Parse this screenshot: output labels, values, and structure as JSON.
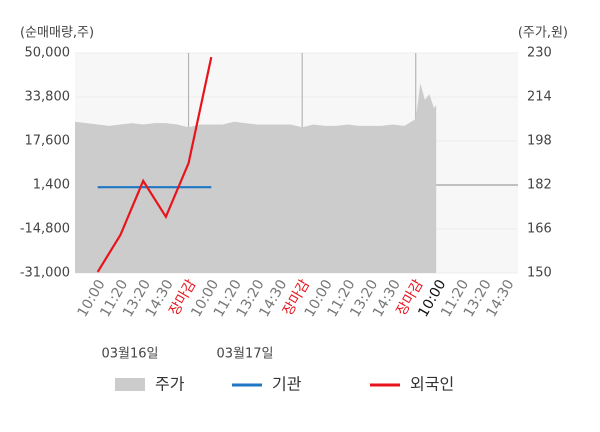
{
  "chart_data": {
    "type": "line",
    "y_axis_label": "(순매매량,주)",
    "y2_axis_label": "(주가,원)",
    "xlim": [
      0,
      19.5
    ],
    "xticks": [
      {
        "value": 1,
        "label": "10:00"
      },
      {
        "value": 2,
        "label": "11:20"
      },
      {
        "value": 3,
        "label": "13:20"
      },
      {
        "value": 4,
        "label": "14:30"
      },
      {
        "value": 5,
        "label": "장마감"
      },
      {
        "value": 6,
        "label": "10:00"
      },
      {
        "value": 7,
        "label": "11:20"
      },
      {
        "value": 8,
        "label": "13:20"
      },
      {
        "value": 9,
        "label": "14:30"
      },
      {
        "value": 10,
        "label": "장마감"
      },
      {
        "value": 11,
        "label": "10:00"
      },
      {
        "value": 12,
        "label": "11:20"
      },
      {
        "value": 13,
        "label": "13:20"
      },
      {
        "value": 14,
        "label": "14:30"
      },
      {
        "value": 15,
        "label": "장마감"
      },
      {
        "value": 16,
        "label": "10:00"
      },
      {
        "value": 17,
        "label": "11:20"
      },
      {
        "value": 18,
        "label": "13:20"
      },
      {
        "value": 19,
        "label": "14:30"
      }
    ],
    "dates": [
      "03월16일",
      "03월17일"
    ],
    "ylim": [
      -31000,
      50000
    ],
    "yticks": [
      {
        "value": 50000,
        "label": "50,000"
      },
      {
        "value": 33800,
        "label": "33,800"
      },
      {
        "value": 17600,
        "label": "17,600"
      },
      {
        "value": 1400,
        "label": "1,400"
      },
      {
        "value": -14800,
        "label": "-14,800"
      },
      {
        "value": -31000,
        "label": "-31,000"
      }
    ],
    "y2lim": [
      150,
      230
    ],
    "y2ticks": [
      150,
      166,
      182,
      198,
      214,
      230
    ],
    "series": [
      {
        "name": "주가",
        "color": "#cccccc",
        "axis": "y2",
        "kind": "area",
        "x": [
          0,
          0.5,
          1,
          1.5,
          2,
          2.5,
          3,
          3.5,
          4,
          4.5,
          5,
          5.5,
          6,
          6.5,
          7,
          7.5,
          8,
          8.5,
          9,
          9.5,
          10,
          10.5,
          11,
          11.5,
          12,
          12.5,
          13,
          13.5,
          14,
          14.5,
          15,
          15.2,
          15.4,
          15.6,
          15.8,
          15.9
        ],
        "values": [
          205,
          204.5,
          204,
          203.5,
          204,
          204.5,
          204,
          204.5,
          204.5,
          204,
          203,
          204,
          204,
          204,
          205,
          204.5,
          204,
          204,
          204,
          204,
          203,
          204,
          203.5,
          203.5,
          204,
          203.5,
          203.5,
          203.5,
          204,
          203.5,
          206,
          219,
          213,
          215,
          210,
          211
        ]
      },
      {
        "name": "기관",
        "color": "#1f77c4",
        "kind": "line",
        "x": [
          1,
          2,
          3,
          4,
          5,
          6
        ],
        "values": [
          600,
          600,
          600,
          600,
          600,
          600
        ]
      },
      {
        "name": "외국인",
        "color": "#e8141c",
        "kind": "line",
        "x": [
          1,
          2,
          3,
          4,
          5,
          6
        ],
        "values": [
          -30600,
          -17000,
          2900,
          -10300,
          9500,
          48500
        ]
      }
    ]
  }
}
